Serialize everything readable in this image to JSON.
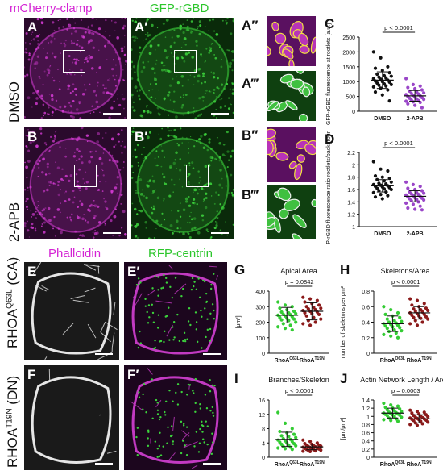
{
  "header": {
    "ch_mcherry": "mCherry-clamp",
    "ch_gfp": "GFP-rGBD",
    "ch_phalloidin": "Phalloidin",
    "ch_rfp": "RFP-centrin"
  },
  "row_labels": {
    "dmso": "DMSO",
    "apb": "2-APB",
    "ca": "RHOA",
    "ca_sup": "Q63L",
    "ca_suffix": " (CA)",
    "dn": "RHOA",
    "dn_sup": "T19N",
    "dn_suffix": " (DN)"
  },
  "panel_letters": {
    "A": "A",
    "A1": "A′",
    "A2": "A″",
    "A3": "A‴",
    "B": "B",
    "B1": "B′",
    "B2": "B″",
    "B3": "B‴",
    "C": "C",
    "D": "D",
    "E": "E",
    "E1": "E′",
    "F": "F",
    "F1": "F′",
    "G": "G",
    "H": "H",
    "I": "I",
    "J": "J"
  },
  "colors": {
    "magenta": "#d424d4",
    "green": "#2cc62c",
    "purple_dot": "#9a46c8",
    "green_dot": "#33cc33",
    "red_dot": "#8b1a1a"
  },
  "chart_data": [
    {
      "id": "C",
      "type": "scatter",
      "ylabel": "GFP-rGBD fluorescence at rootlets [a.u.]",
      "categories": [
        "DMSO",
        "2-APB"
      ],
      "yticks": [
        0,
        500,
        1000,
        1500,
        2000,
        2500
      ],
      "ylim": [
        0,
        2500
      ],
      "pvalue": "p < 0.0001",
      "series": [
        {
          "name": "DMSO",
          "color": "#111111",
          "mean": 1050,
          "sd": 280,
          "values": [
            2000,
            1800,
            1500,
            1450,
            1380,
            1300,
            1250,
            1200,
            1180,
            1150,
            1120,
            1100,
            1080,
            1050,
            1020,
            1000,
            980,
            950,
            920,
            900,
            880,
            850,
            820,
            780,
            720,
            650,
            550,
            350
          ]
        },
        {
          "name": "2-APB",
          "color": "#9a46c8",
          "mean": 520,
          "sd": 180,
          "values": [
            1100,
            900,
            850,
            800,
            760,
            720,
            680,
            650,
            620,
            600,
            580,
            560,
            540,
            520,
            500,
            480,
            460,
            440,
            420,
            400,
            380,
            360,
            340,
            320,
            300,
            250,
            200,
            120
          ]
        }
      ]
    },
    {
      "id": "D",
      "type": "scatter",
      "ylabel": "GFP-rGBD fluorescence ratio rootlets/background",
      "categories": [
        "DMSO",
        "2-APB"
      ],
      "yticks": [
        1.0,
        1.2,
        1.4,
        1.6,
        1.8,
        2.0,
        2.2
      ],
      "ylim": [
        1.0,
        2.2
      ],
      "pvalue": "p < 0.0001",
      "series": [
        {
          "name": "DMSO",
          "color": "#111111",
          "mean": 1.66,
          "sd": 0.1,
          "values": [
            2.05,
            1.93,
            1.9,
            1.82,
            1.8,
            1.78,
            1.76,
            1.74,
            1.72,
            1.7,
            1.69,
            1.68,
            1.67,
            1.66,
            1.65,
            1.64,
            1.63,
            1.62,
            1.61,
            1.6,
            1.58,
            1.56,
            1.55,
            1.52,
            1.5,
            1.48,
            1.45
          ]
        },
        {
          "name": "2-APB",
          "color": "#9a46c8",
          "mean": 1.49,
          "sd": 0.09,
          "values": [
            1.72,
            1.68,
            1.65,
            1.62,
            1.6,
            1.58,
            1.56,
            1.55,
            1.54,
            1.53,
            1.52,
            1.51,
            1.5,
            1.49,
            1.48,
            1.47,
            1.46,
            1.45,
            1.44,
            1.43,
            1.42,
            1.4,
            1.38,
            1.36,
            1.33,
            1.3,
            1.28,
            1.27
          ]
        }
      ]
    },
    {
      "id": "G",
      "type": "scatter",
      "title": "Apical Area",
      "ylabel": "[μm²]",
      "categories": [
        "RhoA",
        "RhoA"
      ],
      "category_sup": [
        "Q63L",
        "T19N"
      ],
      "yticks": [
        0,
        100,
        200,
        300,
        400
      ],
      "ylim": [
        0,
        400
      ],
      "pvalue": "p = 0.0842",
      "series": [
        {
          "name": "RhoA Q63L",
          "color": "#33cc33",
          "mean": 245,
          "sd": 50,
          "values": [
            330,
            310,
            300,
            290,
            280,
            270,
            265,
            260,
            255,
            250,
            248,
            245,
            240,
            235,
            230,
            225,
            220,
            215,
            210,
            200,
            190,
            180,
            170,
            160,
            150
          ]
        },
        {
          "name": "RhoA T19N",
          "color": "#8b1a1a",
          "mean": 270,
          "sd": 55,
          "values": [
            360,
            350,
            340,
            330,
            320,
            310,
            300,
            295,
            290,
            285,
            280,
            275,
            270,
            265,
            260,
            255,
            250,
            240,
            230,
            220,
            210,
            200,
            190,
            180
          ]
        }
      ]
    },
    {
      "id": "H",
      "type": "scatter",
      "title": "Skeletons/Area",
      "ylabel": "number of skeletons per μm²",
      "categories": [
        "RhoA",
        "RhoA"
      ],
      "category_sup": [
        "Q63L",
        "T19N"
      ],
      "yticks": [
        0.0,
        0.2,
        0.4,
        0.6,
        0.8
      ],
      "ylim": [
        0,
        0.8
      ],
      "pvalue": "p < 0.0001",
      "series": [
        {
          "name": "RhoA Q63L",
          "color": "#33cc33",
          "mean": 0.38,
          "sd": 0.1,
          "values": [
            0.6,
            0.56,
            0.52,
            0.5,
            0.48,
            0.46,
            0.44,
            0.42,
            0.41,
            0.4,
            0.39,
            0.38,
            0.37,
            0.36,
            0.35,
            0.34,
            0.33,
            0.32,
            0.3,
            0.29,
            0.28,
            0.26,
            0.24,
            0.22,
            0.2
          ]
        },
        {
          "name": "RhoA T19N",
          "color": "#8b1a1a",
          "mean": 0.52,
          "sd": 0.08,
          "values": [
            0.7,
            0.68,
            0.64,
            0.62,
            0.6,
            0.58,
            0.57,
            0.56,
            0.55,
            0.54,
            0.53,
            0.52,
            0.51,
            0.5,
            0.49,
            0.48,
            0.47,
            0.46,
            0.45,
            0.44,
            0.42,
            0.4,
            0.38,
            0.36
          ]
        }
      ]
    },
    {
      "id": "I",
      "type": "scatter",
      "title": "Branches/Skeleton",
      "ylabel": "",
      "categories": [
        "RhoA",
        "RhoA"
      ],
      "category_sup": [
        "Q63L",
        "T19N"
      ],
      "yticks": [
        0,
        4,
        8,
        12,
        16
      ],
      "ylim": [
        0,
        16
      ],
      "pvalue": "p < 0.0001",
      "series": [
        {
          "name": "RhoA Q63L",
          "color": "#33cc33",
          "mean": 5.0,
          "sd": 2.0,
          "values": [
            12.5,
            9.5,
            8.0,
            7.2,
            6.8,
            6.4,
            6.0,
            5.8,
            5.5,
            5.2,
            5.0,
            4.8,
            4.6,
            4.4,
            4.2,
            4.0,
            3.8,
            3.6,
            3.4,
            3.2,
            3.0,
            2.8,
            2.6,
            2.4,
            2.2
          ]
        },
        {
          "name": "RhoA T19N",
          "color": "#8b1a1a",
          "mean": 2.9,
          "sd": 0.8,
          "values": [
            4.8,
            4.4,
            4.0,
            3.8,
            3.6,
            3.4,
            3.3,
            3.2,
            3.1,
            3.0,
            2.9,
            2.8,
            2.7,
            2.6,
            2.5,
            2.4,
            2.3,
            2.2,
            2.1,
            2.0,
            1.9,
            1.8,
            1.7,
            1.6
          ]
        }
      ]
    },
    {
      "id": "J",
      "type": "scatter",
      "title": "Actin Network Length / Area",
      "ylabel": "[μm/μm²]",
      "categories": [
        "RhoA",
        "RhoA"
      ],
      "category_sup": [
        "Q63L",
        "T19N"
      ],
      "yticks": [
        0.0,
        0.2,
        0.4,
        0.6,
        0.8,
        1.0,
        1.2,
        1.4
      ],
      "ylim": [
        0,
        1.4
      ],
      "pvalue": "p = 0.0003",
      "series": [
        {
          "name": "RhoA Q63L",
          "color": "#33cc33",
          "mean": 1.08,
          "sd": 0.12,
          "values": [
            1.32,
            1.28,
            1.25,
            1.22,
            1.2,
            1.18,
            1.16,
            1.14,
            1.12,
            1.1,
            1.09,
            1.08,
            1.07,
            1.06,
            1.05,
            1.04,
            1.03,
            1.02,
            1.0,
            0.98,
            0.96,
            0.94,
            0.92,
            0.9,
            0.88
          ]
        },
        {
          "name": "RhoA T19N",
          "color": "#8b1a1a",
          "mean": 0.94,
          "sd": 0.1,
          "values": [
            1.15,
            1.12,
            1.1,
            1.08,
            1.06,
            1.04,
            1.02,
            1.0,
            0.99,
            0.98,
            0.97,
            0.96,
            0.95,
            0.94,
            0.93,
            0.92,
            0.91,
            0.9,
            0.88,
            0.86,
            0.84,
            0.82,
            0.8,
            0.78
          ]
        }
      ]
    }
  ]
}
